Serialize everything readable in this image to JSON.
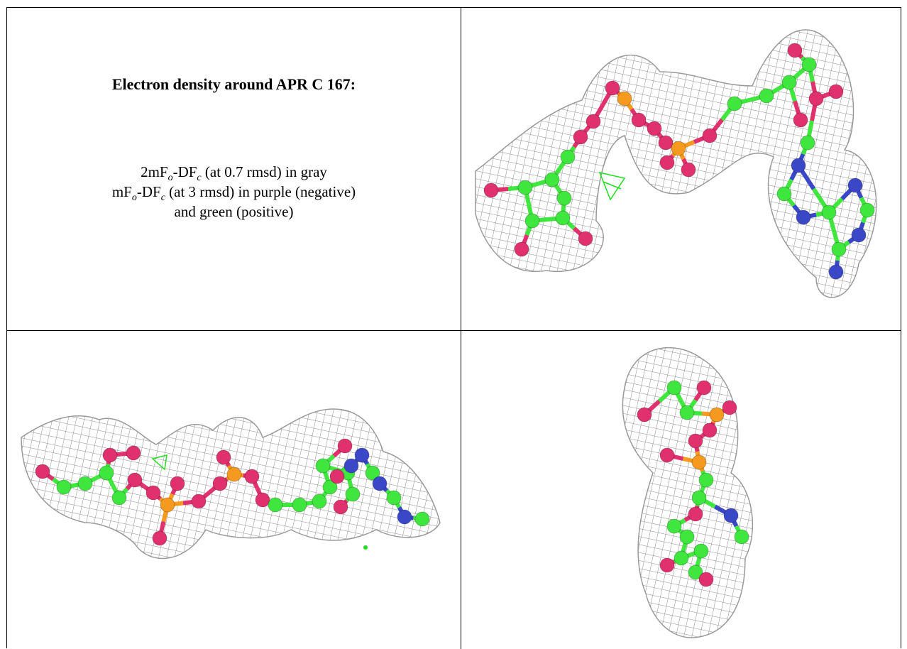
{
  "caption": {
    "title": "Electron density around APR C 167:",
    "lines": [
      {
        "parts": [
          "2mF",
          "-DF",
          " (at 0.7 rmsd) in gray"
        ],
        "subs": [
          "o",
          "c"
        ]
      },
      {
        "parts": [
          "mF",
          "-DF",
          " (at 3 rmsd) in purple (negative)"
        ],
        "subs": [
          "o",
          "c"
        ]
      },
      {
        "parts": [
          "and green (positive)"
        ],
        "subs": []
      }
    ]
  }
}
